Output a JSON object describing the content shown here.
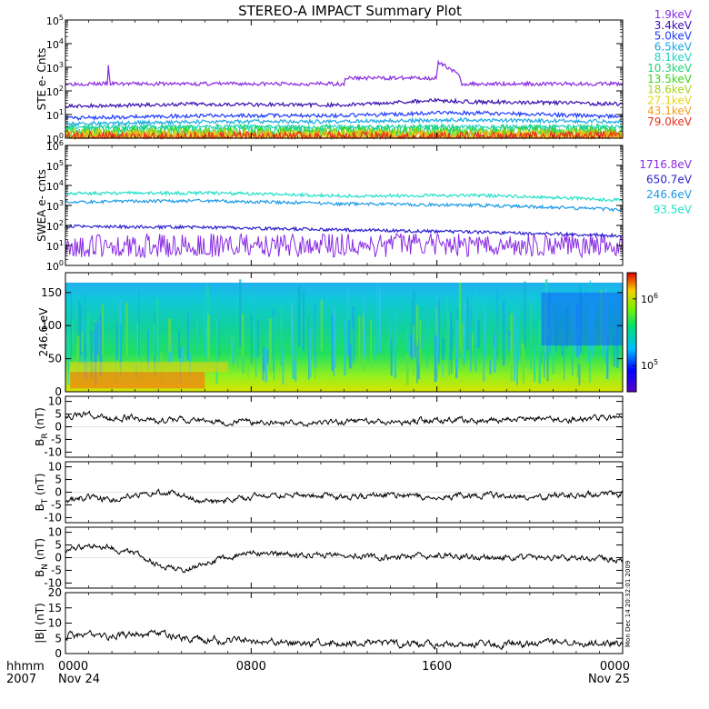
{
  "title": "STEREO-A IMPACT Summary Plot",
  "footer": {
    "corner_top": "hhmm",
    "corner_bottom": "2007",
    "x_ticks": [
      {
        "time": "0000",
        "date": "Nov 24"
      },
      {
        "time": "0800",
        "date": ""
      },
      {
        "time": "1600",
        "date": ""
      },
      {
        "time": "0000",
        "date": "Nov 25"
      }
    ]
  },
  "side_stamp": "Mon Dec 14 20:32:01 2009",
  "chart_data": [
    {
      "type": "line",
      "panel": "STE",
      "ylabel": "STE e- Cnts",
      "yscale": "log",
      "ylim": [
        1,
        100000
      ],
      "y_ticks": [
        {
          "value": 1,
          "mant": "10",
          "exp": "0"
        },
        {
          "value": 10,
          "mant": "10",
          "exp": "1"
        },
        {
          "value": 100,
          "mant": "10",
          "exp": "2"
        },
        {
          "value": 1000,
          "mant": "10",
          "exp": "3"
        },
        {
          "value": 10000,
          "mant": "10",
          "exp": "4"
        },
        {
          "value": 100000,
          "mant": "10",
          "exp": "5"
        }
      ],
      "xlim_hours": [
        0,
        24
      ],
      "series": [
        {
          "name": "1.9keV",
          "color": "#8a2be2",
          "x": [
            0,
            1.8,
            1.85,
            1.9,
            12.0,
            12.05,
            16.0,
            16.05,
            17.0,
            17.05,
            24
          ],
          "y": [
            200,
            200,
            1200,
            200,
            200,
            350,
            350,
            1500,
            350,
            200,
            200
          ]
        },
        {
          "name": "3.4keV",
          "color": "#3a0fb0",
          "x": [
            0,
            6,
            12,
            16,
            17.2,
            24
          ],
          "y": [
            22,
            28,
            25,
            40,
            35,
            28
          ]
        },
        {
          "name": "5.0keV",
          "color": "#1f3bff",
          "x": [
            0,
            6,
            12,
            17,
            24
          ],
          "y": [
            7,
            9,
            9,
            12,
            8
          ]
        },
        {
          "name": "6.5keV",
          "color": "#1aa6e6",
          "x": [
            0,
            6,
            12,
            17,
            24
          ],
          "y": [
            4,
            5,
            5,
            6,
            5
          ]
        },
        {
          "name": "8.1keV",
          "color": "#22d3c5",
          "x": [
            0,
            24
          ],
          "y": [
            3,
            3
          ]
        },
        {
          "name": "10.3keV",
          "color": "#1fd37a",
          "x": [
            0,
            24
          ],
          "y": [
            2.2,
            2.2
          ]
        },
        {
          "name": "13.5keV",
          "color": "#3fd420",
          "x": [
            0,
            24
          ],
          "y": [
            1.7,
            1.7
          ]
        },
        {
          "name": "18.6keV",
          "color": "#a7d41c",
          "x": [
            0,
            24
          ],
          "y": [
            1.4,
            1.4
          ]
        },
        {
          "name": "27.1keV",
          "color": "#e6d61a",
          "x": [
            0,
            24
          ],
          "y": [
            1.25,
            1.25
          ]
        },
        {
          "name": "43.1keV",
          "color": "#f0a01a",
          "x": [
            0,
            24
          ],
          "y": [
            1.15,
            1.15
          ]
        },
        {
          "name": "79.0keV",
          "color": "#e8301a",
          "x": [
            0,
            24
          ],
          "y": [
            1.08,
            1.08
          ]
        }
      ]
    },
    {
      "type": "line",
      "panel": "SWEA",
      "ylabel": "SWEA e- cnts",
      "yscale": "log",
      "ylim": [
        1,
        1000000
      ],
      "y_ticks": [
        {
          "value": 1,
          "mant": "10",
          "exp": "0"
        },
        {
          "value": 10,
          "mant": "10",
          "exp": "1"
        },
        {
          "value": 100,
          "mant": "10",
          "exp": "2"
        },
        {
          "value": 1000,
          "mant": "10",
          "exp": "3"
        },
        {
          "value": 10000,
          "mant": "10",
          "exp": "4"
        },
        {
          "value": 100000,
          "mant": "10",
          "exp": "5"
        },
        {
          "value": 1000000,
          "mant": "10",
          "exp": "6"
        }
      ],
      "xlim_hours": [
        0,
        24
      ],
      "series": [
        {
          "name": "1716.8eV",
          "color": "#8a2be2",
          "x": [
            0,
            24
          ],
          "y": [
            10,
            10
          ]
        },
        {
          "name": "650.7eV",
          "color": "#2a1fd0",
          "x": [
            0,
            6,
            12,
            18,
            24
          ],
          "y": [
            90,
            80,
            60,
            45,
            30
          ]
        },
        {
          "name": "246.6eV",
          "color": "#1a9ae6",
          "x": [
            0,
            6,
            12,
            18,
            24
          ],
          "y": [
            1500,
            1700,
            1200,
            1000,
            600
          ]
        },
        {
          "name": "93.5eV",
          "color": "#20e0c8",
          "x": [
            0,
            6,
            12,
            18,
            24
          ],
          "y": [
            4000,
            4200,
            3000,
            3200,
            1800
          ]
        }
      ]
    },
    {
      "type": "heatmap",
      "panel": "spectrogram",
      "ylabel": "246.6 eV",
      "ylim": [
        0,
        180
      ],
      "y_ticks": [
        0,
        50,
        100,
        150
      ],
      "xlim_hours": [
        0,
        24
      ],
      "colorbar_ticks": [
        {
          "mant": "10",
          "exp": "6",
          "level": 0.78
        },
        {
          "mant": "10",
          "exp": "5",
          "level": 0.22
        }
      ]
    },
    {
      "type": "line",
      "panel": "BR",
      "ylabel_main": "B",
      "ylabel_sub": "R",
      "ylabel_unit": "(nT)",
      "ylim": [
        -12,
        12
      ],
      "y_ticks": [
        10,
        5,
        0,
        -5,
        -10
      ],
      "xlim_hours": [
        0,
        24
      ],
      "series": [
        {
          "x": [
            0,
            1,
            2,
            3,
            4,
            5,
            6,
            8,
            10,
            12,
            14,
            16,
            18,
            20,
            22,
            24
          ],
          "y": [
            4,
            5,
            3,
            4,
            2,
            3,
            2,
            2,
            1.5,
            2,
            2,
            2.5,
            2.5,
            3,
            3,
            3.5
          ]
        }
      ]
    },
    {
      "type": "line",
      "panel": "BT",
      "ylabel_main": "B",
      "ylabel_sub": "T",
      "ylabel_unit": "(nT)",
      "ylim": [
        -12,
        12
      ],
      "y_ticks": [
        10,
        5,
        0,
        -5,
        -10
      ],
      "xlim_hours": [
        0,
        24
      ],
      "series": [
        {
          "x": [
            0,
            1,
            2,
            3,
            4,
            5,
            6,
            8,
            10,
            12,
            14,
            16,
            18,
            20,
            22,
            24
          ],
          "y": [
            -3,
            -2,
            -3,
            -1,
            0,
            -1,
            -4,
            -2,
            -1,
            -2,
            -1,
            -2,
            -1,
            -2,
            -1,
            -0.5
          ]
        }
      ]
    },
    {
      "type": "line",
      "panel": "BN",
      "ylabel_main": "B",
      "ylabel_sub": "N",
      "ylabel_unit": "(nT)",
      "ylim": [
        -12,
        12
      ],
      "y_ticks": [
        10,
        5,
        0,
        -5,
        -10
      ],
      "xlim_hours": [
        0,
        24
      ],
      "series": [
        {
          "x": [
            0,
            1,
            2,
            3,
            4,
            5,
            6,
            8,
            10,
            12,
            14,
            16,
            18,
            20,
            22,
            24
          ],
          "y": [
            3,
            5,
            4,
            2,
            -3,
            -5,
            -2,
            2,
            1,
            1,
            0,
            1,
            0,
            0,
            0,
            -1
          ]
        }
      ]
    },
    {
      "type": "line",
      "panel": "B",
      "ylabel_main": "|B|",
      "ylabel_sub": "",
      "ylabel_unit": "(nT)",
      "ylim": [
        0,
        20
      ],
      "y_ticks": [
        20,
        15,
        10,
        5,
        0
      ],
      "xlim_hours": [
        0,
        24
      ],
      "series": [
        {
          "x": [
            0,
            2,
            4,
            5,
            6,
            8,
            10,
            12,
            14,
            16,
            18,
            20,
            22,
            24
          ],
          "y": [
            6,
            6,
            6.5,
            5,
            4.5,
            4,
            3.5,
            3.5,
            3.3,
            3.2,
            3.2,
            3.3,
            3.2,
            3.5
          ]
        }
      ]
    }
  ]
}
